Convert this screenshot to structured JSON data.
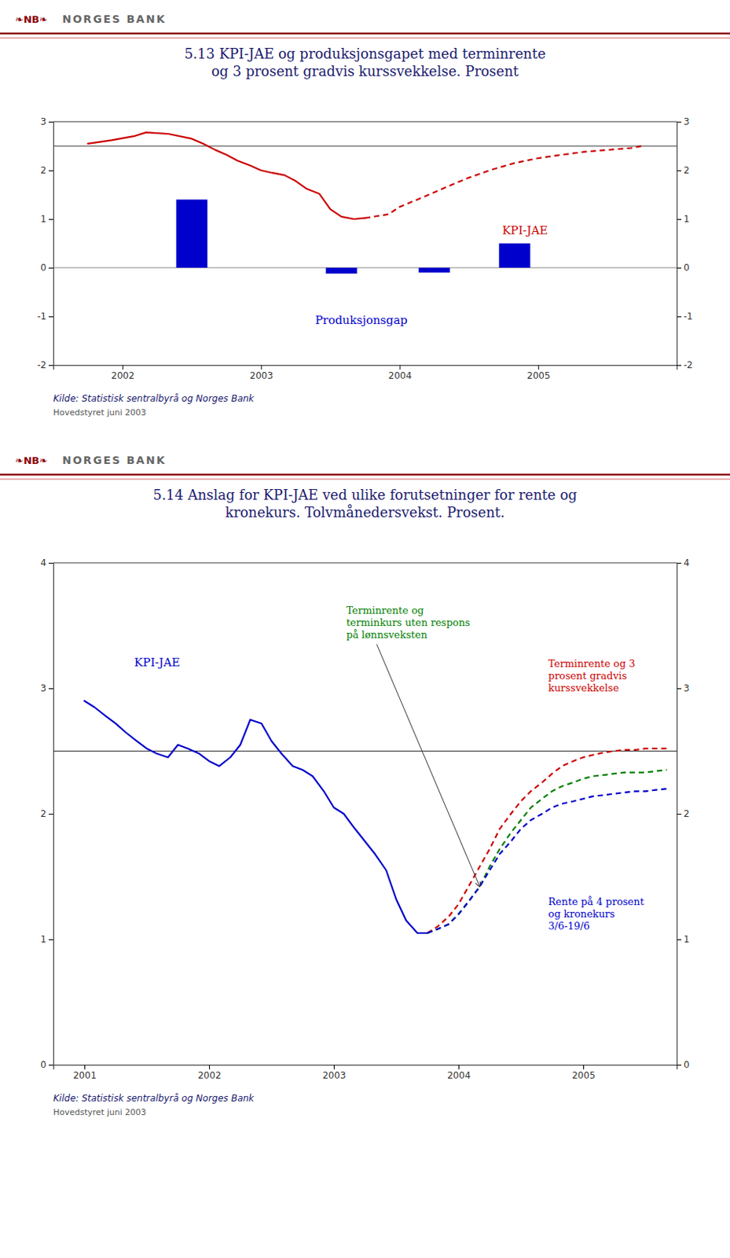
{
  "chart_data": [
    {
      "type": "line",
      "title": "5.13 KPI-JAE og produksjonsgapet med terminrente\nog 3 prosent gradvis kurssvekkelse. Prosent",
      "annotations": [
        "❧NB❧",
        "NORGES BANK",
        "Kilde: Statistisk sentralbyrå og Norges Bank",
        "Hovedstyret juni  2003"
      ],
      "xlim": [
        2001.5,
        2006.0
      ],
      "xticks": [
        2002,
        2003,
        2004,
        2005
      ],
      "ylim": [
        -2,
        3
      ],
      "yticks": [
        -2,
        -1,
        0,
        1,
        2,
        3
      ],
      "y2lim": [
        -2,
        3
      ],
      "y2ticks": [
        -2,
        -1,
        0,
        1,
        2,
        3
      ],
      "reference_line": 2.5,
      "series": [
        {
          "name": "Produksjonsgap",
          "type": "bar",
          "color": "#0000cc",
          "x": [
            2002.5,
            2003.58,
            2004.25,
            2004.83
          ],
          "values": [
            1.4,
            -0.12,
            -0.1,
            0.5
          ]
        },
        {
          "name": "KPI-JAE",
          "type": "line",
          "color": "#cc0000",
          "line_style": "solid",
          "x": [
            2001.75,
            2001.92,
            2002.08,
            2002.17,
            2002.33,
            2002.5,
            2002.58,
            2002.67,
            2002.75,
            2002.83,
            2002.92,
            2003.0,
            2003.08,
            2003.17,
            2003.25,
            2003.33,
            2003.42,
            2003.5,
            2003.58,
            2003.67,
            2003.75
          ],
          "values": [
            2.55,
            2.62,
            2.7,
            2.78,
            2.75,
            2.65,
            2.55,
            2.42,
            2.32,
            2.2,
            2.1,
            2.0,
            1.95,
            1.9,
            1.78,
            1.62,
            1.52,
            1.2,
            1.05,
            1.0,
            1.02
          ]
        },
        {
          "type": "line",
          "color": "#cc0000",
          "line_style": "dashed",
          "x": [
            2003.75,
            2003.92,
            2004.0,
            2004.17,
            2004.33,
            2004.5,
            2004.67,
            2004.83,
            2005.0,
            2005.17,
            2005.33,
            2005.5,
            2005.67,
            2005.75
          ],
          "values": [
            1.02,
            1.1,
            1.25,
            1.45,
            1.65,
            1.85,
            2.02,
            2.15,
            2.25,
            2.32,
            2.38,
            2.42,
            2.46,
            2.5
          ]
        }
      ]
    },
    {
      "type": "line",
      "title": "5.14 Anslag for KPI-JAE ved ulike forutsetninger for rente og\nkronekurs. Tolvmånedersvekst. Prosent.",
      "annotations": [
        "❧NB❧",
        "NORGES BANK",
        "Kilde: Statistisk sentralbyrå og Norges Bank",
        "Hovedstyret juni  2003"
      ],
      "xlim": [
        2000.75,
        2005.75
      ],
      "xticks": [
        2001,
        2002,
        2003,
        2004,
        2005
      ],
      "ylim": [
        0,
        4
      ],
      "yticks": [
        0,
        1,
        2,
        3,
        4
      ],
      "y2lim": [
        0,
        4
      ],
      "y2ticks": [
        0,
        1,
        2,
        3,
        4
      ],
      "reference_line": 2.5,
      "series": [
        {
          "name": "KPI-JAE",
          "type": "line",
          "color": "#0000cc",
          "line_style": "solid",
          "x": [
            2001.0,
            2001.08,
            2001.17,
            2001.25,
            2001.33,
            2001.42,
            2001.5,
            2001.58,
            2001.67,
            2001.75,
            2001.83,
            2001.92,
            2002.0,
            2002.08,
            2002.17,
            2002.25,
            2002.33,
            2002.42,
            2002.5,
            2002.58,
            2002.67,
            2002.75,
            2002.83,
            2002.92,
            2003.0,
            2003.08,
            2003.17,
            2003.25,
            2003.33,
            2003.42,
            2003.5,
            2003.58,
            2003.67,
            2003.75
          ],
          "values": [
            2.9,
            2.85,
            2.78,
            2.72,
            2.65,
            2.58,
            2.52,
            2.48,
            2.45,
            2.55,
            2.52,
            2.48,
            2.42,
            2.38,
            2.45,
            2.55,
            2.75,
            2.72,
            2.58,
            2.48,
            2.38,
            2.35,
            2.3,
            2.18,
            2.05,
            2.0,
            1.88,
            1.78,
            1.68,
            1.55,
            1.32,
            1.15,
            1.05,
            1.05
          ]
        },
        {
          "name": "Terminrente og\nterminkurs uten respons\npå lønnsveksten",
          "type": "line",
          "color": "#008000",
          "line_style": "dashed",
          "x": [
            2003.75,
            2003.83,
            2003.92,
            2004.0,
            2004.08,
            2004.17,
            2004.25,
            2004.33,
            2004.42,
            2004.5,
            2004.58,
            2004.67,
            2004.75,
            2004.83,
            2004.92,
            2005.0,
            2005.08,
            2005.17,
            2005.25,
            2005.33,
            2005.42,
            2005.5,
            2005.58,
            2005.67
          ],
          "values": [
            1.05,
            1.08,
            1.12,
            1.2,
            1.3,
            1.42,
            1.58,
            1.72,
            1.85,
            1.95,
            2.05,
            2.12,
            2.18,
            2.22,
            2.25,
            2.28,
            2.3,
            2.31,
            2.32,
            2.33,
            2.33,
            2.33,
            2.34,
            2.35
          ]
        },
        {
          "name": "Terminrente og 3\nprosent gradvis\nkurssvekkelse",
          "type": "line",
          "color": "#cc0000",
          "line_style": "dashed",
          "x": [
            2003.75,
            2003.83,
            2003.92,
            2004.0,
            2004.08,
            2004.17,
            2004.25,
            2004.33,
            2004.42,
            2004.5,
            2004.58,
            2004.67,
            2004.75,
            2004.83,
            2004.92,
            2005.0,
            2005.08,
            2005.17,
            2005.25,
            2005.33,
            2005.42,
            2005.5,
            2005.58,
            2005.67
          ],
          "values": [
            1.05,
            1.1,
            1.18,
            1.28,
            1.42,
            1.58,
            1.72,
            1.88,
            2.0,
            2.1,
            2.18,
            2.25,
            2.32,
            2.38,
            2.42,
            2.45,
            2.47,
            2.49,
            2.5,
            2.51,
            2.51,
            2.52,
            2.52,
            2.52
          ]
        },
        {
          "name": "Rente på 4 prosent\nog kronekurs\n3/6-19/6",
          "type": "line",
          "color": "#0000cc",
          "line_style": "dashed",
          "x": [
            2003.75,
            2003.83,
            2003.92,
            2004.0,
            2004.08,
            2004.17,
            2004.25,
            2004.33,
            2004.42,
            2004.5,
            2004.58,
            2004.67,
            2004.75,
            2004.83,
            2004.92,
            2005.0,
            2005.08,
            2005.17,
            2005.25,
            2005.33,
            2005.42,
            2005.5,
            2005.58,
            2005.67
          ],
          "values": [
            1.05,
            1.08,
            1.12,
            1.2,
            1.3,
            1.42,
            1.55,
            1.68,
            1.78,
            1.88,
            1.95,
            2.0,
            2.05,
            2.08,
            2.1,
            2.12,
            2.14,
            2.15,
            2.16,
            2.17,
            2.18,
            2.18,
            2.19,
            2.2
          ]
        }
      ]
    }
  ]
}
